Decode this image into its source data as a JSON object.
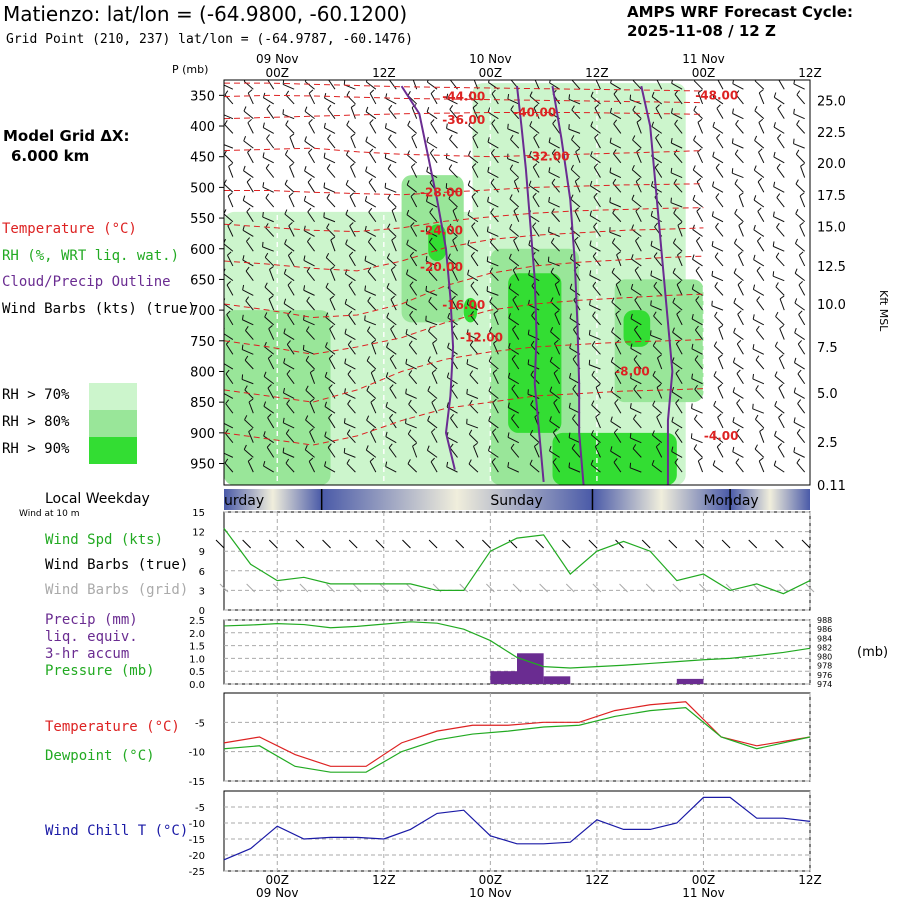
{
  "header": {
    "title": "Matienzo:  lat/lon = (-64.9800, -60.1200)",
    "grid_point": "Grid Point (210, 237) lat/lon = (-64.9787, -60.1476)",
    "cycle_label": "AMPS WRF Forecast Cycle:",
    "cycle_value": "2025-11-08 / 12  Z"
  },
  "left_panel": {
    "model_grid_line1": "Model Grid ΔX:",
    "model_grid_line2": "6.000 km",
    "legend": [
      {
        "text": "Temperature (°C)",
        "color": "#dd2222"
      },
      {
        "text": "RH (%, WRT liq. wat.)",
        "color": "#22aa22"
      },
      {
        "text": "Cloud/Precip Outline",
        "color": "#6a2c91"
      },
      {
        "text": "Wind Barbs (kts) (true)",
        "color": "#000000"
      }
    ],
    "rh_key": [
      {
        "text": "RH > 70%",
        "color": "#ccf5cc"
      },
      {
        "text": "RH > 80%",
        "color": "#99e699"
      },
      {
        "text": "RH > 90%",
        "color": "#33dd33"
      }
    ]
  },
  "chart_data": [
    {
      "type": "heatmap",
      "name": "pressure-time cross section",
      "ylabel": "P (mb)",
      "y2label": "Kft MSL",
      "y_ticks": [
        "350",
        "400",
        "450",
        "500",
        "550",
        "600",
        "650",
        "700",
        "750",
        "800",
        "850",
        "900",
        "950"
      ],
      "y_range_mb": [
        325,
        985
      ],
      "y2_ticks": [
        "25.0",
        "22.5",
        "20.0",
        "17.5",
        "15.0",
        "12.5",
        "10.0",
        "7.5",
        "5.0",
        "2.5",
        "0.11"
      ],
      "y2_tick_mb": [
        358,
        410,
        460,
        512,
        564,
        628,
        690,
        760,
        835,
        915,
        985
      ],
      "x_range_hours": [
        -6,
        48
      ],
      "x_ticks": [
        {
          "hour": 0,
          "label": "00Z",
          "date": "09 Nov"
        },
        {
          "hour": 12,
          "label": "12Z",
          "date": ""
        },
        {
          "hour": 24,
          "label": "00Z",
          "date": "10 Nov"
        },
        {
          "hour": 36,
          "label": "12Z",
          "date": ""
        },
        {
          "hour": 48,
          "label": "00Z",
          "date": "11 Nov"
        },
        {
          "hour": 60,
          "label": "12Z",
          "date": ""
        }
      ],
      "temperature_labels": [
        {
          "text": "-44.00",
          "hour": 21,
          "mb": 352
        },
        {
          "text": "-48.00",
          "hour": 49.5,
          "mb": 350
        },
        {
          "text": "-36.00",
          "hour": 21,
          "mb": 390
        },
        {
          "text": "-40.00",
          "hour": 29,
          "mb": 378
        },
        {
          "text": "-32.00",
          "hour": 30.5,
          "mb": 450
        },
        {
          "text": "-28.00",
          "hour": 18.5,
          "mb": 508
        },
        {
          "text": "-24.00",
          "hour": 18.5,
          "mb": 570
        },
        {
          "text": "-20.00",
          "hour": 18.5,
          "mb": 630
        },
        {
          "text": "-16.00",
          "hour": 21,
          "mb": 692
        },
        {
          "text": "-12.00",
          "hour": 23,
          "mb": 745
        },
        {
          "text": "-8.00",
          "hour": 40,
          "mb": 800
        },
        {
          "text": "-4.00",
          "hour": 50,
          "mb": 905
        }
      ],
      "isotherm_mb": [
        [
          330,
          330,
          332,
          334,
          336,
          337,
          338,
          339,
          340,
          341,
          342,
          343
        ],
        [
          352,
          350,
          351,
          353,
          355,
          356,
          357,
          358,
          359,
          360,
          361,
          362
        ],
        [
          388,
          386,
          384,
          382,
          380,
          379,
          378,
          378,
          378,
          379,
          380,
          381
        ],
        [
          440,
          438,
          436,
          442,
          446,
          448,
          450,
          448,
          446,
          444,
          442,
          440
        ],
        [
          505,
          505,
          508,
          510,
          512,
          508,
          504,
          500,
          498,
          496,
          495,
          494
        ],
        [
          560,
          565,
          570,
          572,
          566,
          555,
          548,
          542,
          538,
          536,
          534,
          533
        ],
        [
          620,
          625,
          632,
          636,
          620,
          598,
          585,
          578,
          574,
          570,
          568,
          566
        ],
        [
          690,
          700,
          712,
          708,
          690,
          660,
          640,
          628,
          622,
          618,
          614,
          612
        ],
        [
          750,
          760,
          772,
          760,
          745,
          720,
          700,
          690,
          684,
          680,
          676,
          674
        ],
        [
          830,
          840,
          850,
          830,
          800,
          780,
          768,
          760,
          756,
          752,
          750,
          748
        ],
        [
          900,
          910,
          920,
          905,
          880,
          860,
          850,
          840,
          836,
          832,
          830,
          828
        ]
      ],
      "isotherm_hours": [
        -6,
        -1,
        4,
        9,
        14,
        19,
        24,
        29,
        34,
        39,
        44,
        48
      ],
      "cloud_outlines_hours_mb": [
        [
          [
            14,
            335
          ],
          [
            16,
            380
          ],
          [
            17,
            450
          ],
          [
            18,
            520
          ],
          [
            19,
            600
          ],
          [
            19.5,
            680
          ],
          [
            19.8,
            760
          ],
          [
            19.5,
            840
          ],
          [
            19,
            900
          ],
          [
            20,
            960
          ]
        ],
        [
          [
            27,
            335
          ],
          [
            27.5,
            400
          ],
          [
            28,
            470
          ],
          [
            28.5,
            560
          ],
          [
            29,
            650
          ],
          [
            29.2,
            740
          ],
          [
            29,
            820
          ],
          [
            29.5,
            900
          ],
          [
            30,
            980
          ]
        ],
        [
          [
            31,
            335
          ],
          [
            32,
            420
          ],
          [
            33,
            520
          ],
          [
            33.5,
            620
          ],
          [
            33.8,
            720
          ],
          [
            34,
            820
          ],
          [
            34,
            900
          ],
          [
            34.5,
            985
          ]
        ],
        [
          [
            41,
            335
          ],
          [
            42,
            400
          ],
          [
            42.5,
            480
          ],
          [
            43,
            560
          ],
          [
            43.5,
            640
          ],
          [
            44,
            720
          ],
          [
            44.5,
            800
          ],
          [
            44,
            880
          ],
          [
            44,
            985
          ]
        ]
      ],
      "rh_patches": [
        {
          "level": 70,
          "hour_range": [
            -6,
            40
          ],
          "mb_range": [
            540,
            985
          ]
        },
        {
          "level": 70,
          "hour_range": [
            22,
            46
          ],
          "mb_range": [
            330,
            985
          ]
        },
        {
          "level": 80,
          "hour_range": [
            -6,
            6
          ],
          "mb_range": [
            700,
            985
          ]
        },
        {
          "level": 80,
          "hour_range": [
            14,
            21
          ],
          "mb_range": [
            480,
            720
          ]
        },
        {
          "level": 80,
          "hour_range": [
            24,
            34
          ],
          "mb_range": [
            600,
            985
          ]
        },
        {
          "level": 80,
          "hour_range": [
            38,
            48
          ],
          "mb_range": [
            650,
            850
          ]
        },
        {
          "level": 90,
          "hour_range": [
            26,
            32
          ],
          "mb_range": [
            640,
            900
          ]
        },
        {
          "level": 90,
          "hour_range": [
            17,
            19
          ],
          "mb_range": [
            560,
            620
          ]
        },
        {
          "level": 90,
          "hour_range": [
            21,
            22.5
          ],
          "mb_range": [
            680,
            720
          ]
        },
        {
          "level": 90,
          "hour_range": [
            39,
            42
          ],
          "mb_range": [
            700,
            760
          ]
        },
        {
          "level": 90,
          "hour_range": [
            31,
            45
          ],
          "mb_range": [
            900,
            985
          ]
        }
      ]
    },
    {
      "type": "line",
      "name": "wind speed",
      "legend": [
        {
          "text": "Wind Spd (kts)",
          "color": "#22aa22"
        },
        {
          "text": "Wind Barbs (true)",
          "color": "#000000"
        },
        {
          "text": "Wind Barbs (grid)",
          "color": "#aaaaaa"
        }
      ],
      "ylim": [
        0,
        15
      ],
      "y_ticks": [
        "0",
        "3",
        "6",
        "9",
        "12",
        "15"
      ],
      "x": [
        -6,
        -3,
        0,
        3,
        6,
        9,
        12,
        15,
        18,
        21,
        24,
        27,
        30,
        33,
        36,
        39,
        42,
        45,
        48,
        51,
        54,
        57,
        60
      ],
      "values": [
        12.5,
        7,
        4.5,
        5,
        4,
        4,
        4,
        4,
        3,
        3,
        9,
        11,
        11.5,
        5.5,
        9,
        10.5,
        9,
        4.5,
        5.5,
        3,
        4,
        2.5,
        4.5
      ]
    },
    {
      "type": "bar+line",
      "name": "precipitation and pressure",
      "legend": [
        {
          "text": "Precip (mm)",
          "color": "#6a2c91"
        },
        {
          "text": "liq. equiv.",
          "color": "#6a2c91"
        },
        {
          "text": "3-hr accum",
          "color": "#6a2c91"
        },
        {
          "text": "Pressure (mb)",
          "color": "#22aa22"
        }
      ],
      "ylim": [
        0,
        2.5
      ],
      "y_ticks": [
        "0.0",
        "0.5",
        "1.0",
        "1.5",
        "2.0",
        "2.5"
      ],
      "y2lim": [
        974,
        988
      ],
      "y2_ticks": [
        "974",
        "976",
        "978",
        "980",
        "982",
        "984",
        "986",
        "988"
      ],
      "y2label": "(mb)",
      "precip_x": [
        24,
        27,
        30,
        45
      ],
      "precip_values": [
        0.5,
        1.2,
        0.3,
        0.2
      ],
      "pressure_x": [
        -6,
        -3,
        0,
        3,
        6,
        9,
        12,
        15,
        18,
        21,
        24,
        27,
        30,
        33,
        36,
        39,
        42,
        45,
        48,
        51,
        54,
        57,
        60
      ],
      "pressure_values": [
        986.7,
        986.9,
        987.2,
        987,
        986.3,
        986.6,
        987.1,
        987.6,
        987.3,
        986,
        983.5,
        979.8,
        977.8,
        977.5,
        977.8,
        978.1,
        978.5,
        978.9,
        979.3,
        979.6,
        980.2,
        980.9,
        981.8
      ]
    },
    {
      "type": "line",
      "name": "temperature and dewpoint",
      "legend": [
        {
          "text": "Temperature (°C)",
          "color": "#dd2222"
        },
        {
          "text": "Dewpoint (°C)",
          "color": "#22aa22"
        }
      ],
      "ylim": [
        -15,
        0
      ],
      "y_ticks": [
        "-15",
        "-10",
        "-5"
      ],
      "series": [
        {
          "name": "Temperature",
          "color": "#dd2222",
          "x": [
            -6,
            -2,
            2,
            6,
            10,
            14,
            18,
            22,
            26,
            30,
            34,
            38,
            42,
            46,
            50,
            54,
            60
          ],
          "values": [
            -8.5,
            -7.5,
            -10.5,
            -12.5,
            -12.5,
            -8.5,
            -6.5,
            -5.5,
            -5.5,
            -5,
            -5,
            -3,
            -2,
            -1.5,
            -7.5,
            -9,
            -7.5
          ]
        },
        {
          "name": "Dewpoint",
          "color": "#22aa22",
          "x": [
            -6,
            -2,
            2,
            6,
            10,
            14,
            18,
            22,
            26,
            30,
            34,
            38,
            42,
            46,
            50,
            54,
            60
          ],
          "values": [
            -9.5,
            -9,
            -12.5,
            -13.5,
            -13.5,
            -10,
            -8,
            -7,
            -6.5,
            -5.8,
            -5.5,
            -4,
            -3,
            -2.5,
            -7.5,
            -9.5,
            -7.5
          ]
        }
      ]
    },
    {
      "type": "line",
      "name": "wind chill",
      "legend": [
        {
          "text": "Wind Chill T (°C)",
          "color": "#1a1aa6"
        }
      ],
      "ylim": [
        -25,
        0
      ],
      "y_ticks": [
        "-25",
        "-20",
        "-15",
        "-10",
        "-5"
      ],
      "x": [
        -6,
        -3,
        0,
        3,
        6,
        9,
        12,
        15,
        18,
        21,
        24,
        27,
        30,
        33,
        36,
        39,
        42,
        45,
        48,
        51,
        54,
        57,
        60
      ],
      "values": [
        -21.5,
        -18,
        -11,
        -15,
        -14.5,
        -14.5,
        -15,
        -12,
        -7,
        -6,
        -14,
        -16.5,
        -16.5,
        -16,
        -9,
        -12,
        -12,
        -10,
        -2,
        -2,
        -8.5,
        -8.5,
        -9.5
      ]
    }
  ],
  "weekday_bar": {
    "label": "Local Weekday",
    "sublabel": "Wind at 10 m",
    "days": [
      {
        "text": "urday",
        "hour": -5.5
      },
      {
        "text": "Sunday",
        "hour": 24
      },
      {
        "text": "Monday",
        "hour": 48
      }
    ],
    "day_boundaries_hours": [
      5,
      35.5,
      51
    ]
  },
  "bottom_axis": {
    "ticks": [
      {
        "hour": 0,
        "label": "00Z",
        "date": "09 Nov"
      },
      {
        "hour": 12,
        "label": "12Z",
        "date": ""
      },
      {
        "hour": 24,
        "label": "00Z",
        "date": "10 Nov"
      },
      {
        "hour": 36,
        "label": "12Z",
        "date": ""
      },
      {
        "hour": 48,
        "label": "00Z",
        "date": "11 Nov"
      },
      {
        "hour": 60,
        "label": "12Z",
        "date": ""
      }
    ]
  },
  "colors": {
    "temperature": "#dd2222",
    "rh": "#22aa22",
    "cloud": "#6a2c91",
    "windchill": "#1a1aa6",
    "rh70": "#ccf5cc",
    "rh80": "#99e699",
    "rh90": "#33dd33",
    "grid": "#aaaaaa"
  }
}
